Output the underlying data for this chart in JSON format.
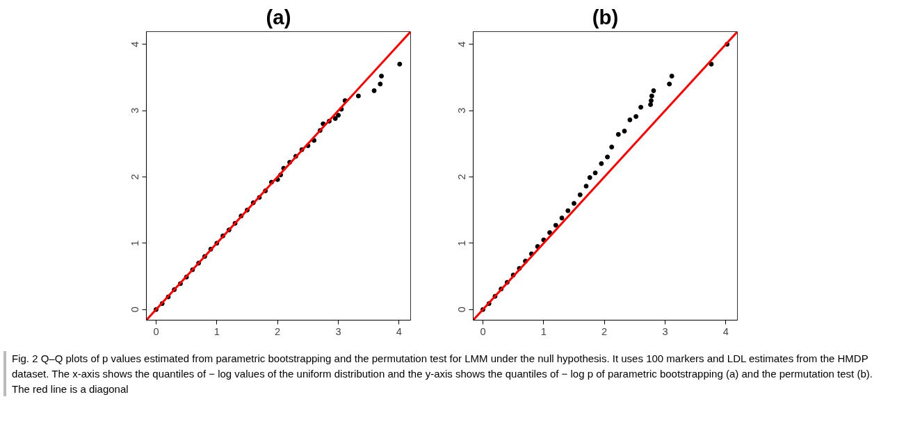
{
  "chart_data": [
    {
      "type": "scatter",
      "title": "(a)",
      "xlim": [
        -0.16,
        4.19
      ],
      "ylim": [
        -0.16,
        4.19
      ],
      "xticks": [
        0,
        1,
        2,
        3,
        4
      ],
      "yticks": [
        0,
        1,
        2,
        3,
        4
      ],
      "grid": false,
      "series": [
        {
          "marker": "circle",
          "color": "#000000",
          "x": [
            0,
            0.1,
            0.2,
            0.3,
            0.4,
            0.5,
            0.6,
            0.7,
            0.8,
            0.9,
            1.0,
            1.1,
            1.2,
            1.3,
            1.4,
            1.5,
            1.6,
            1.7,
            1.8,
            1.9,
            2.0,
            2.05,
            2.1,
            2.2,
            2.3,
            2.4,
            2.5,
            2.6,
            2.7,
            2.75,
            2.85,
            2.95,
            3.0,
            3.05,
            3.11,
            3.33,
            3.59,
            3.69,
            3.71,
            4.01
          ],
          "values": [
            0,
            0.09,
            0.19,
            0.3,
            0.39,
            0.49,
            0.6,
            0.7,
            0.8,
            0.91,
            1.0,
            1.11,
            1.2,
            1.3,
            1.41,
            1.5,
            1.61,
            1.69,
            1.79,
            1.92,
            1.96,
            2.03,
            2.13,
            2.22,
            2.31,
            2.41,
            2.47,
            2.55,
            2.7,
            2.8,
            2.84,
            2.88,
            2.93,
            3.02,
            3.15,
            3.22,
            3.3,
            3.4,
            3.52,
            3.7
          ]
        },
        {
          "type": "line",
          "color": "#ff0000",
          "line_style": "solid",
          "x": [
            -0.16,
            4.19
          ],
          "values": [
            -0.16,
            4.19
          ]
        }
      ]
    },
    {
      "type": "scatter",
      "title": "(b)",
      "xlim": [
        -0.16,
        4.19
      ],
      "ylim": [
        -0.16,
        4.19
      ],
      "xticks": [
        0,
        1,
        2,
        3,
        4
      ],
      "yticks": [
        0,
        1,
        2,
        3,
        4
      ],
      "grid": false,
      "series": [
        {
          "marker": "circle",
          "color": "#000000",
          "x": [
            0,
            0.1,
            0.2,
            0.3,
            0.4,
            0.5,
            0.6,
            0.7,
            0.8,
            0.9,
            1.0,
            1.1,
            1.2,
            1.3,
            1.4,
            1.5,
            1.6,
            1.7,
            1.76,
            1.85,
            1.95,
            2.05,
            2.12,
            2.23,
            2.33,
            2.42,
            2.52,
            2.6,
            2.76,
            2.77,
            2.78,
            2.81,
            3.07,
            3.11,
            3.76,
            4.02
          ],
          "values": [
            0,
            0.09,
            0.2,
            0.31,
            0.41,
            0.52,
            0.62,
            0.73,
            0.84,
            0.95,
            1.05,
            1.16,
            1.27,
            1.38,
            1.49,
            1.6,
            1.73,
            1.86,
            1.99,
            2.06,
            2.2,
            2.3,
            2.45,
            2.64,
            2.69,
            2.86,
            2.91,
            3.05,
            3.09,
            3.15,
            3.22,
            3.3,
            3.4,
            3.52,
            3.7,
            4.0
          ]
        },
        {
          "type": "line",
          "color": "#ff0000",
          "line_style": "solid",
          "x": [
            -0.16,
            4.19
          ],
          "values": [
            -0.16,
            4.19
          ]
        }
      ],
      "annotations": [
        "Fig. 2 Q–Q plots of p values estimated from parametric bootstrapping and the permutation test for LMM under the null hypothesis. It uses 100 markers and LDL estimates from the HMDP dataset. The x-axis shows the quantiles of − log values of the uniform distribution and the y-axis shows the quantiles of − log p of parametric bootstrapping (a) and the permutation test (b). The red line is a diagonal"
      ]
    }
  ]
}
